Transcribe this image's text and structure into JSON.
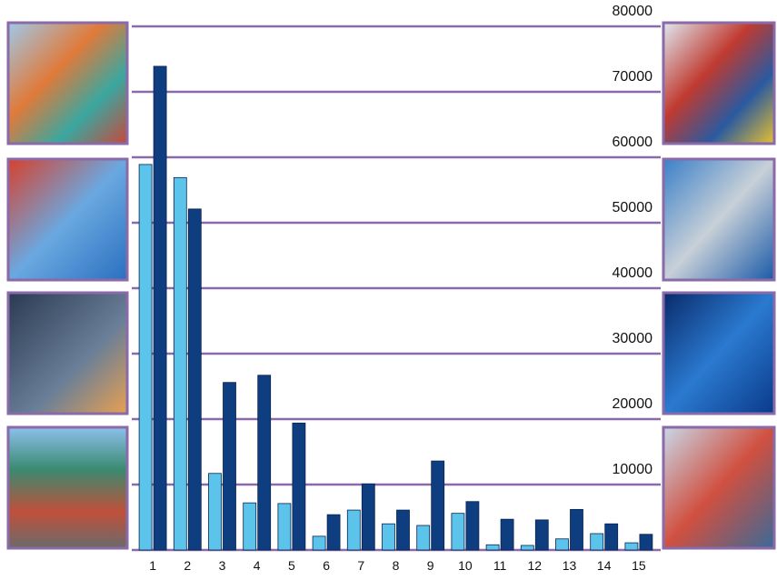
{
  "chart_data": {
    "type": "bar",
    "categories": [
      "1",
      "2",
      "3",
      "4",
      "5",
      "6",
      "7",
      "8",
      "9",
      "10",
      "11",
      "12",
      "13",
      "14",
      "15"
    ],
    "series": [
      {
        "color": "#5cc3ea",
        "values": [
          58900,
          56900,
          11700,
          7200,
          7100,
          2100,
          6100,
          4000,
          3750,
          5600,
          800,
          700,
          1700,
          2500,
          1100
        ]
      },
      {
        "color": "#0e3d80",
        "values": [
          73900,
          52100,
          25600,
          26700,
          19400,
          5400,
          10100,
          6100,
          13600,
          7400,
          4700,
          4600,
          6200,
          4000,
          2400
        ]
      }
    ],
    "ylim": [
      0,
      80000
    ],
    "yticks": [
      10000,
      20000,
      30000,
      40000,
      50000,
      60000,
      70000,
      80000
    ],
    "grid": true
  }
}
